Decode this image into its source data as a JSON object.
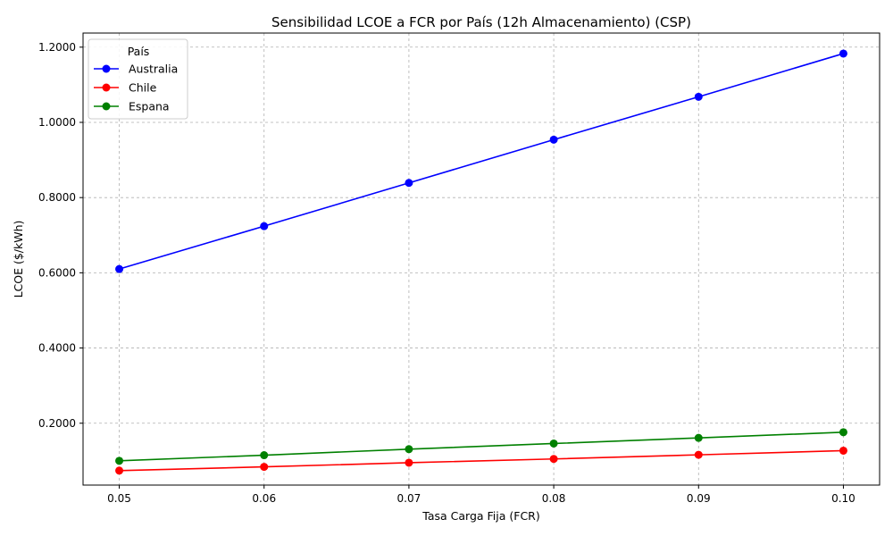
{
  "chart_data": {
    "type": "line",
    "title": "Sensibilidad LCOE a FCR por País (12h Almacenamiento) (CSP)",
    "xlabel": "Tasa Carga Fija (FCR)",
    "ylabel": "LCOE ($/kWh)",
    "x": [
      0.05,
      0.06,
      0.07,
      0.08,
      0.09,
      0.1
    ],
    "x_tick_labels": [
      "0.05",
      "0.06",
      "0.07",
      "0.08",
      "0.09",
      "0.10"
    ],
    "xlim": [
      0.0475,
      0.1025
    ],
    "y_ticks": [
      0.2,
      0.4,
      0.6,
      0.8,
      1.0,
      1.2
    ],
    "y_tick_labels": [
      "0.2000",
      "0.4000",
      "0.6000",
      "0.8000",
      "1.0000",
      "1.2000"
    ],
    "ylim": [
      0.0355,
      1.2375
    ],
    "grid": true,
    "legend": {
      "title": "País",
      "placement": "top-left"
    },
    "series": [
      {
        "name": "Australia",
        "color": "#0000ff",
        "marker": "circle",
        "values": [
          0.61,
          0.724,
          0.839,
          0.954,
          1.068,
          1.183
        ]
      },
      {
        "name": "Chile",
        "color": "#ff0000",
        "marker": "circle",
        "values": [
          0.074,
          0.084,
          0.095,
          0.105,
          0.116,
          0.127
        ]
      },
      {
        "name": "Espana",
        "color": "#008000",
        "marker": "circle",
        "values": [
          0.1,
          0.115,
          0.131,
          0.146,
          0.161,
          0.176
        ]
      }
    ]
  }
}
